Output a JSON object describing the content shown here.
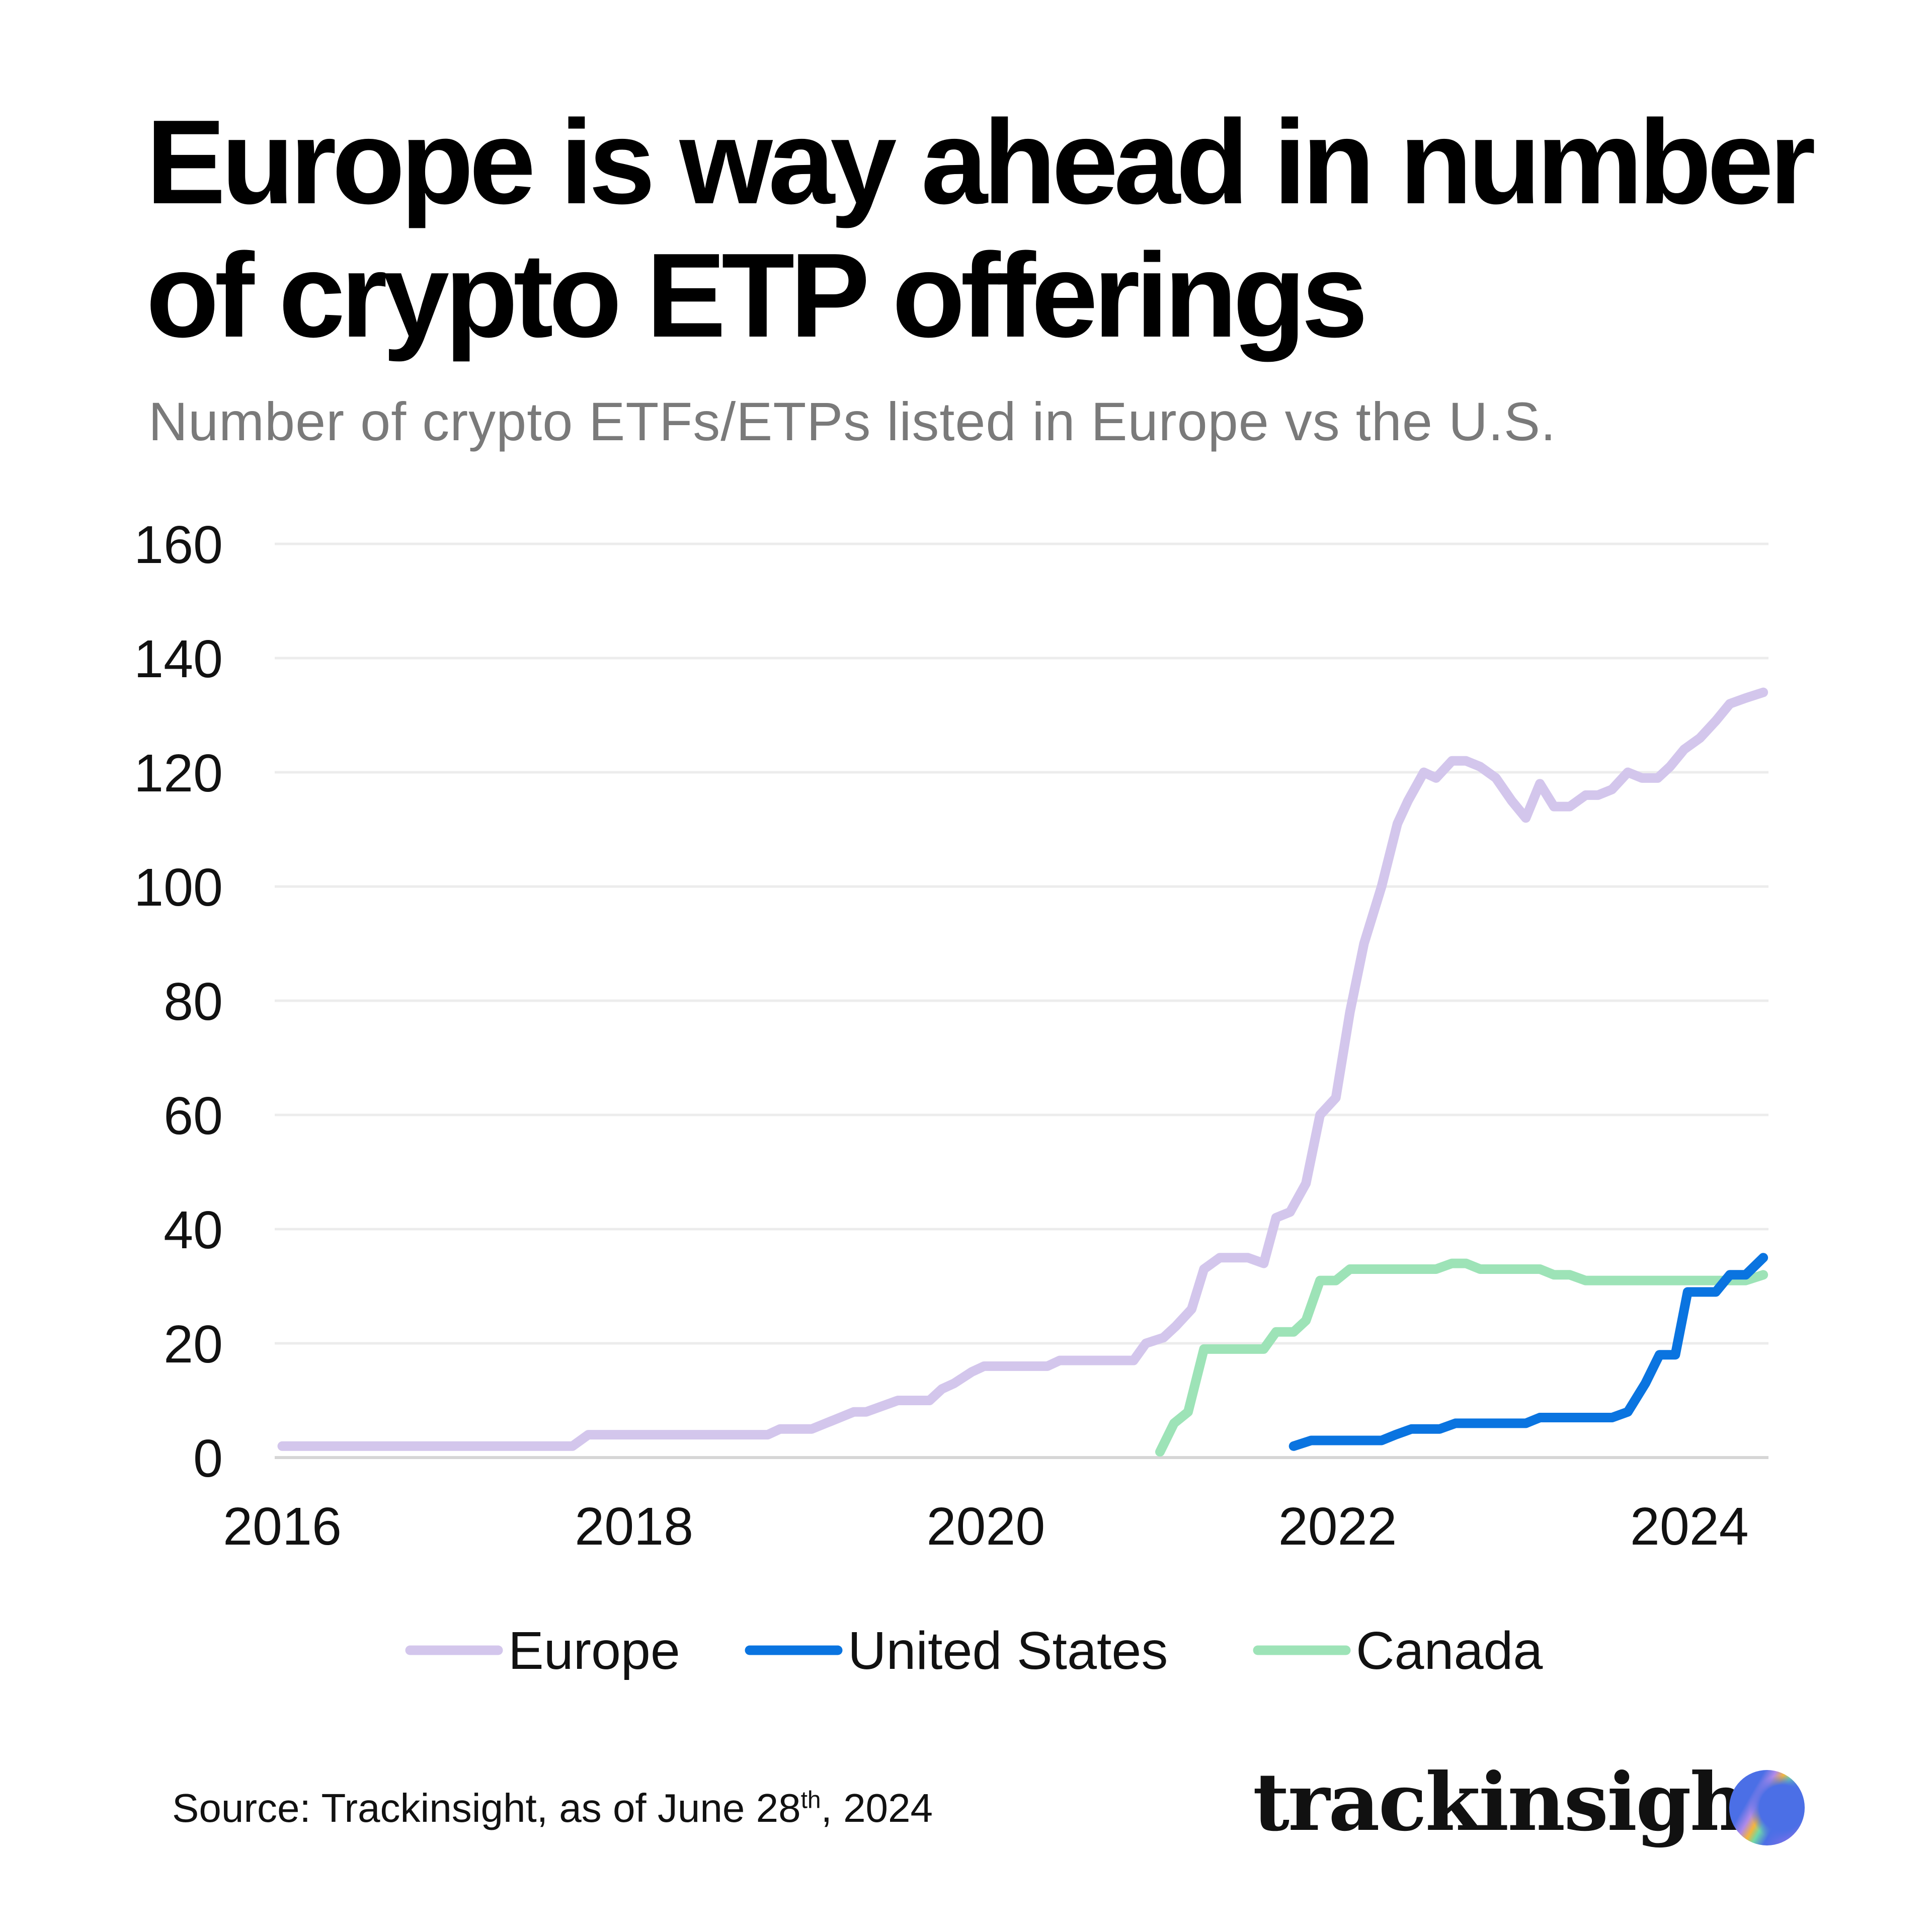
{
  "title": "Europe is way ahead in number of crypto ETP offerings",
  "subtitle": "Number of crypto ETFs/ETPs listed in Europe vs the U.S.",
  "source": {
    "text": "Source: Trackinsight, as of June 28",
    "sup": "th",
    "tail": ", 2024"
  },
  "logo": "trackinsight",
  "chart_data": {
    "type": "line",
    "title": "",
    "xlabel": "",
    "ylabel": "",
    "xlim": [
      2016,
      2024.5
    ],
    "ylim": [
      0,
      160
    ],
    "xticks": [
      "2016",
      "2018",
      "2020",
      "2022",
      "2024"
    ],
    "yticks": [
      "0",
      "20",
      "40",
      "60",
      "80",
      "100",
      "120",
      "140",
      "160"
    ],
    "grid": "horizontal",
    "legend": "bottom",
    "series": [
      {
        "name": "Europe",
        "color": "#d3c6ec",
        "points": [
          [
            2016,
            2
          ],
          [
            2017.65,
            2
          ],
          [
            2017.74,
            4
          ],
          [
            2018.76,
            4
          ],
          [
            2018.83,
            5
          ],
          [
            2019.01,
            5
          ],
          [
            2019.25,
            8
          ],
          [
            2019.32,
            8
          ],
          [
            2019.5,
            10
          ],
          [
            2019.68,
            10
          ],
          [
            2019.75,
            12
          ],
          [
            2019.82,
            13
          ],
          [
            2019.92,
            15
          ],
          [
            2019.99,
            16
          ],
          [
            2020.35,
            16
          ],
          [
            2020.42,
            17
          ],
          [
            2020.84,
            17
          ],
          [
            2020.91,
            20
          ],
          [
            2021.01,
            21
          ],
          [
            2021.08,
            23
          ],
          [
            2021.17,
            26
          ],
          [
            2021.24,
            33
          ],
          [
            2021.33,
            35
          ],
          [
            2021.49,
            35
          ],
          [
            2021.58,
            34
          ],
          [
            2021.65,
            42
          ],
          [
            2021.73,
            43
          ],
          [
            2021.82,
            48
          ],
          [
            2021.9,
            60
          ],
          [
            2021.99,
            63
          ],
          [
            2022.07,
            78
          ],
          [
            2022.15,
            90
          ],
          [
            2022.25,
            100
          ],
          [
            2022.34,
            111
          ],
          [
            2022.4,
            115
          ],
          [
            2022.49,
            120
          ],
          [
            2022.56,
            119
          ],
          [
            2022.65,
            122
          ],
          [
            2022.73,
            122
          ],
          [
            2022.81,
            121
          ],
          [
            2022.9,
            119
          ],
          [
            2022.99,
            115
          ],
          [
            2023.07,
            112
          ],
          [
            2023.15,
            118
          ],
          [
            2023.23,
            114
          ],
          [
            2023.32,
            114
          ],
          [
            2023.41,
            116
          ],
          [
            2023.48,
            116
          ],
          [
            2023.56,
            117
          ],
          [
            2023.65,
            120
          ],
          [
            2023.73,
            119
          ],
          [
            2023.82,
            119
          ],
          [
            2023.89,
            121
          ],
          [
            2023.97,
            124
          ],
          [
            2024.06,
            126
          ],
          [
            2024.15,
            129
          ],
          [
            2024.23,
            132
          ],
          [
            2024.32,
            133
          ],
          [
            2024.42,
            134
          ]
        ]
      },
      {
        "name": "United States",
        "color": "#0a74e0",
        "points": [
          [
            2021.75,
            2
          ],
          [
            2021.85,
            3
          ],
          [
            2022.25,
            3
          ],
          [
            2022.33,
            4
          ],
          [
            2022.42,
            5
          ],
          [
            2022.58,
            5
          ],
          [
            2022.67,
            6
          ],
          [
            2023.07,
            6
          ],
          [
            2023.15,
            7
          ],
          [
            2023.56,
            7
          ],
          [
            2023.65,
            8
          ],
          [
            2023.75,
            13
          ],
          [
            2023.83,
            18
          ],
          [
            2023.92,
            18
          ],
          [
            2023.99,
            29
          ],
          [
            2024.15,
            29
          ],
          [
            2024.23,
            32
          ],
          [
            2024.32,
            32
          ],
          [
            2024.42,
            35
          ]
        ]
      },
      {
        "name": "Canada",
        "color": "#9de3b7",
        "points": [
          [
            2020.99,
            1
          ],
          [
            2021.07,
            6
          ],
          [
            2021.15,
            8
          ],
          [
            2021.24,
            19
          ],
          [
            2021.58,
            19
          ],
          [
            2021.65,
            22
          ],
          [
            2021.75,
            22
          ],
          [
            2021.82,
            24
          ],
          [
            2021.9,
            31
          ],
          [
            2021.99,
            31
          ],
          [
            2022.07,
            33
          ],
          [
            2022.56,
            33
          ],
          [
            2022.65,
            34
          ],
          [
            2022.73,
            34
          ],
          [
            2022.81,
            33
          ],
          [
            2023.15,
            33
          ],
          [
            2023.23,
            32
          ],
          [
            2023.32,
            32
          ],
          [
            2023.41,
            31
          ],
          [
            2024.32,
            31
          ],
          [
            2024.42,
            32
          ]
        ]
      }
    ]
  }
}
